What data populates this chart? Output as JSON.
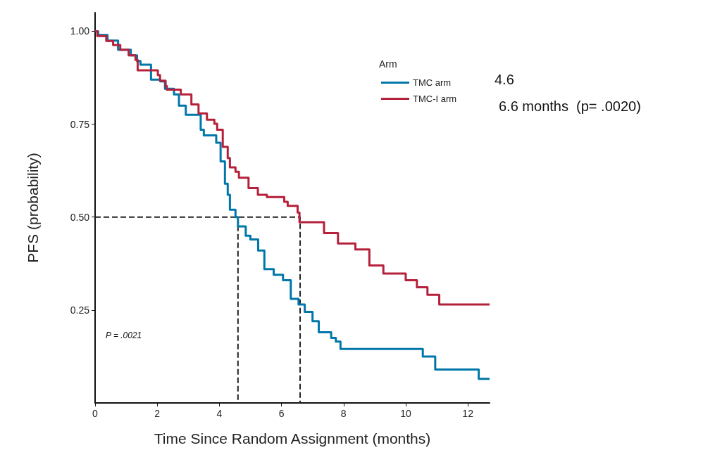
{
  "chart_data": {
    "type": "step",
    "xlabel": "Time Since Random Assignment (months)",
    "ylabel": "PFS (probability)",
    "legend_title": "Arm",
    "legend": "top right",
    "marker": "none",
    "grid": false,
    "xlim": [
      0,
      12.7
    ],
    "xticks": [
      0,
      2,
      4,
      6,
      8,
      10,
      12
    ],
    "ylim": [
      0,
      1.05
    ],
    "yticks": [
      {
        "value": 0.25,
        "label": "0.25"
      },
      {
        "value": 0.5,
        "label": "0.50"
      },
      {
        "value": 0.75,
        "label": "0.75"
      },
      {
        "value": 1,
        "label": "1.00"
      }
    ],
    "annotations": [
      "P = .0021",
      "4.6",
      "6.6 months  (p= .0020)"
    ],
    "series": [
      {
        "name": "TMC arm",
        "color": "#0077aa",
        "x": [
          0,
          0.1,
          0.4,
          0.74,
          1.15,
          1.35,
          1.46,
          1.8,
          2.1,
          2.25,
          2.54,
          2.7,
          2.92,
          3.4,
          3.5,
          3.9,
          4.04,
          4.18,
          4.27,
          4.34,
          4.52,
          4.6,
          4.85,
          5.0,
          5.25,
          5.45,
          5.75,
          6.05,
          6.3,
          6.55,
          6.75,
          7.0,
          7.2,
          7.6,
          7.75,
          7.9,
          10.55,
          10.95,
          12.35,
          12.7
        ],
        "values": [
          1.0,
          0.99,
          0.975,
          0.95,
          0.935,
          0.92,
          0.91,
          0.87,
          0.865,
          0.845,
          0.83,
          0.8,
          0.775,
          0.735,
          0.72,
          0.7,
          0.65,
          0.59,
          0.56,
          0.52,
          0.5,
          0.475,
          0.45,
          0.44,
          0.41,
          0.36,
          0.345,
          0.33,
          0.28,
          0.265,
          0.245,
          0.22,
          0.19,
          0.175,
          0.165,
          0.145,
          0.125,
          0.09,
          0.065,
          0.065
        ]
      },
      {
        "name": "TMC-I arm",
        "color": "#b5203a",
        "x": [
          0,
          0.07,
          0.36,
          0.58,
          0.81,
          1.08,
          1.3,
          1.37,
          2.02,
          2.09,
          2.27,
          2.31,
          2.76,
          3.1,
          3.33,
          3.6,
          3.84,
          3.93,
          4.11,
          4.27,
          4.34,
          4.52,
          4.63,
          4.94,
          5.24,
          5.53,
          6.09,
          6.2,
          6.52,
          6.58,
          7.37,
          7.82,
          8.38,
          8.83,
          9.28,
          10.0,
          10.36,
          10.7,
          11.08,
          12.7
        ],
        "values": [
          1.0,
          0.987,
          0.974,
          0.963,
          0.95,
          0.935,
          0.923,
          0.895,
          0.882,
          0.867,
          0.853,
          0.843,
          0.83,
          0.803,
          0.779,
          0.762,
          0.751,
          0.735,
          0.689,
          0.659,
          0.634,
          0.622,
          0.606,
          0.578,
          0.56,
          0.554,
          0.541,
          0.53,
          0.512,
          0.486,
          0.457,
          0.429,
          0.413,
          0.37,
          0.348,
          0.33,
          0.311,
          0.291,
          0.265,
          0.265
        ]
      },
      {
        "type": "line",
        "line_style": "dashed",
        "color": "#222222",
        "x": [
          0,
          6.6,
          6.6
        ],
        "values": [
          0.5,
          0.5,
          0
        ]
      },
      {
        "type": "line",
        "line_style": "dashed",
        "color": "#222222",
        "x": [
          4.6,
          4.6
        ],
        "values": [
          0.5,
          0
        ]
      }
    ]
  }
}
